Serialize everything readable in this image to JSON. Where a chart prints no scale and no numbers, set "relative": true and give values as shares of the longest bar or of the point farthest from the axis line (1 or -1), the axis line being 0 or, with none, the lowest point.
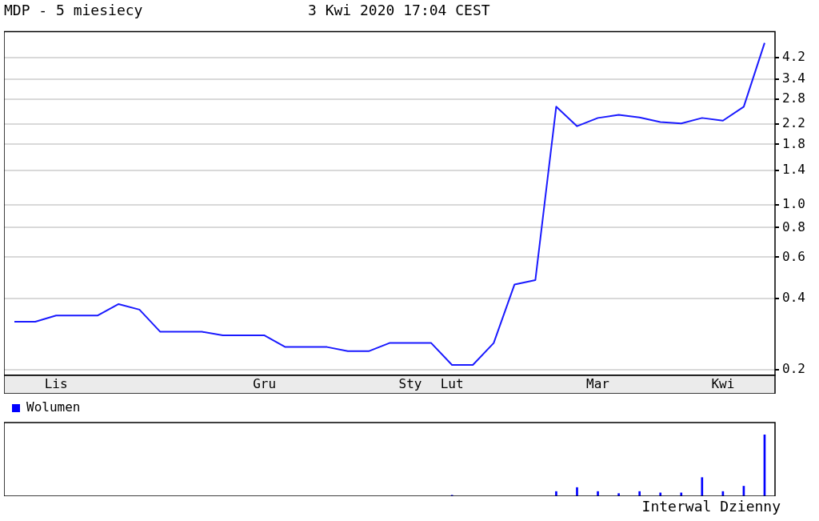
{
  "chart_data": [
    {
      "type": "line",
      "title": "MDP - 5 miesiecy",
      "subtitle": "3 Kwi 2020 17:04 CEST",
      "categories": [
        null,
        null,
        "Lis",
        null,
        null,
        null,
        null,
        null,
        null,
        null,
        null,
        null,
        "Gru",
        null,
        null,
        null,
        null,
        null,
        null,
        "Sty",
        null,
        "Lut",
        null,
        null,
        null,
        null,
        null,
        null,
        "Mar",
        null,
        null,
        null,
        null,
        null,
        "Kwi",
        null,
        null
      ],
      "series": [
        {
          "color": "#1a1aff",
          "values": [
            0.32,
            0.32,
            0.34,
            0.34,
            0.34,
            0.38,
            0.36,
            0.29,
            0.29,
            0.29,
            0.28,
            0.28,
            0.28,
            0.25,
            0.25,
            0.25,
            0.24,
            0.24,
            0.26,
            0.26,
            0.26,
            0.21,
            0.21,
            0.26,
            0.46,
            0.48,
            2.6,
            2.15,
            2.33,
            2.4,
            2.34,
            2.24,
            2.21,
            2.33,
            2.27,
            2.6,
            4.84
          ]
        }
      ],
      "log": "y",
      "ylim": [
        0.19,
        5.4
      ],
      "yticks": [
        0.2,
        0.4,
        0.6,
        0.8,
        {
          "value": 1,
          "label": "1.0"
        },
        1.4,
        1.8,
        2.2,
        2.8,
        3.4,
        4.2
      ],
      "grid": "y",
      "legend": false,
      "marker": "none",
      "line_style": "solid"
    },
    {
      "type": "bar",
      "relative": true,
      "categories": [
        null,
        null,
        null,
        null,
        null,
        null,
        null,
        null,
        null,
        null,
        null,
        null,
        null,
        null,
        null,
        null,
        null,
        null,
        null,
        null,
        null,
        null,
        null,
        null,
        null,
        null,
        null,
        null,
        null,
        null,
        null,
        null,
        null,
        null,
        null,
        null,
        null
      ],
      "series": [
        {
          "name": "Wolumen",
          "color": "#0000ff",
          "values": [
            null,
            null,
            null,
            null,
            null,
            null,
            null,
            null,
            null,
            null,
            null,
            null,
            null,
            null,
            null,
            null,
            null,
            null,
            null,
            null,
            null,
            0.016,
            null,
            null,
            null,
            null,
            0.076,
            0.141,
            0.076,
            0.043,
            0.076,
            0.054,
            0.054,
            0.304,
            0.076,
            0.163,
            1
          ]
        }
      ],
      "legend": "top left",
      "grid": false,
      "annotations": [
        "Interwal Dzienny"
      ]
    }
  ]
}
